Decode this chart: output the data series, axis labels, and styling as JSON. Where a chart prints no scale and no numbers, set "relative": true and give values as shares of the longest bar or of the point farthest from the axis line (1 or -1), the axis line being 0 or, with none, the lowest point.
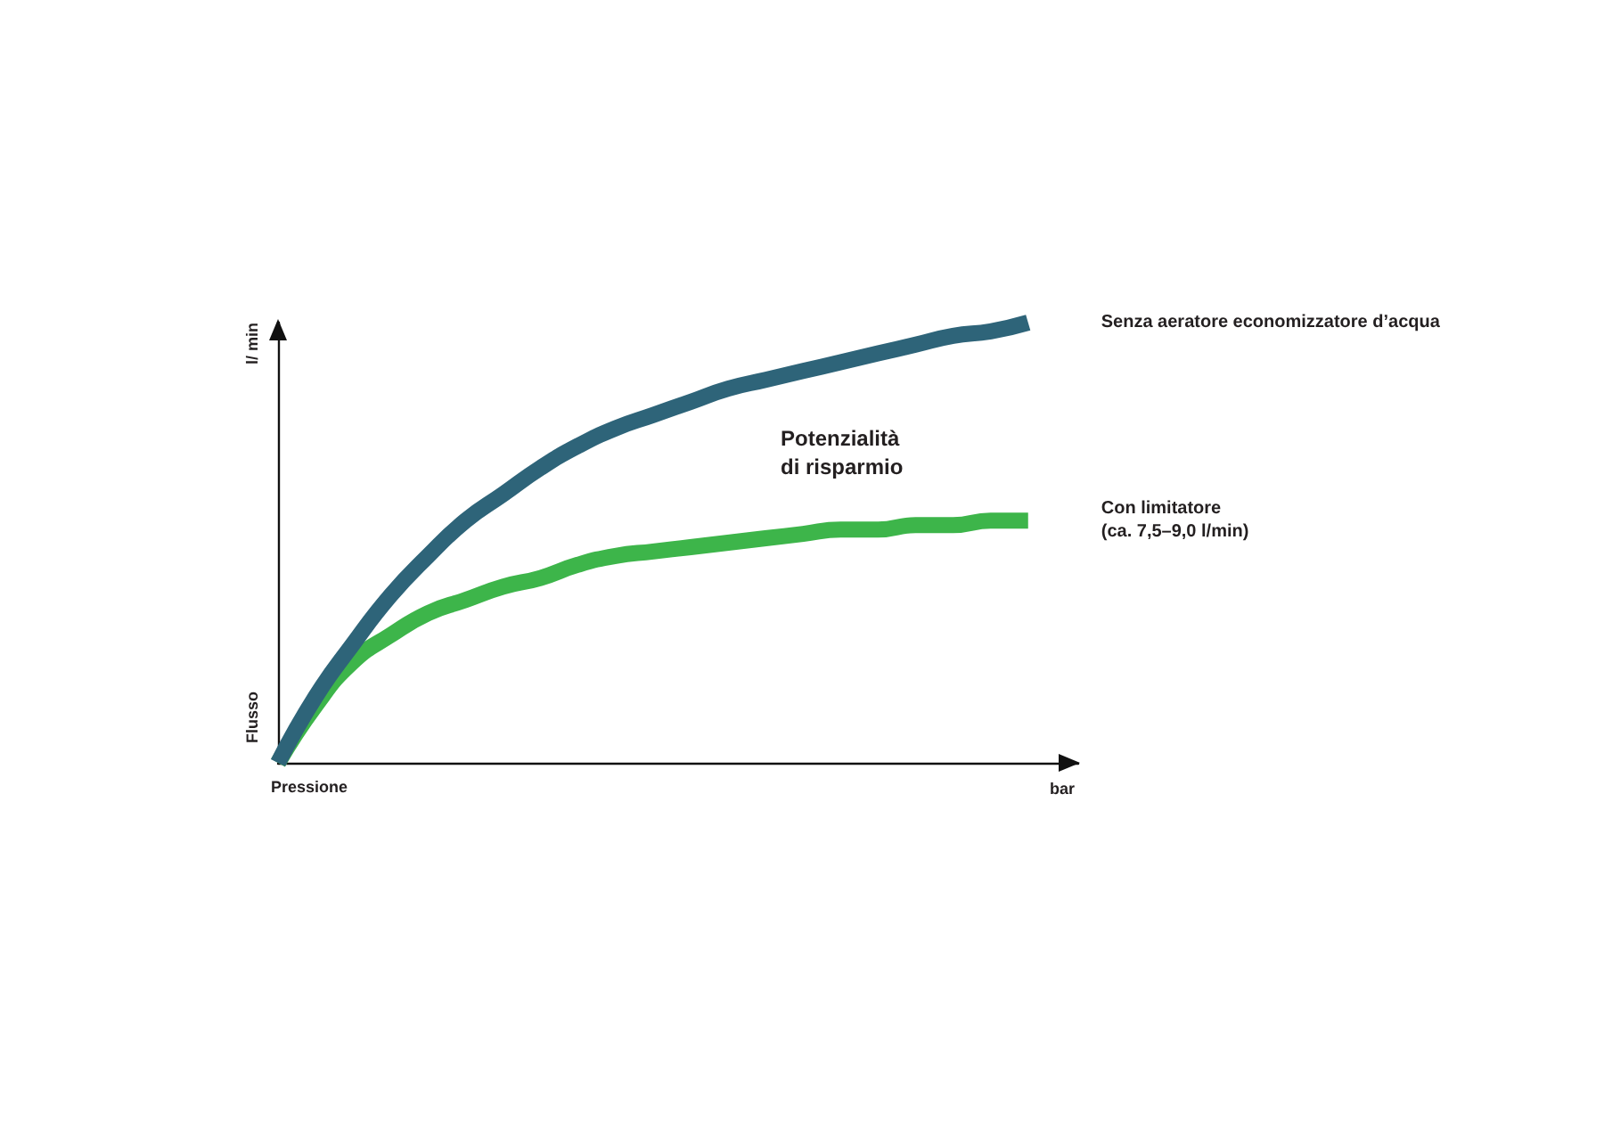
{
  "chart_data": {
    "type": "line",
    "relative": true,
    "xlabel": "Pressione",
    "ylabel": "Flusso",
    "annotations": [
      "l/ min",
      "bar",
      "Potenzialità\ndi risparmio"
    ],
    "categories": [
      null,
      null,
      null,
      null,
      null,
      null,
      null,
      null,
      null,
      null,
      null,
      null,
      null,
      null,
      null,
      null,
      null,
      null,
      null,
      null,
      null
    ],
    "series": [
      {
        "name": "Senza aeratore economizzatore d’acqua",
        "color": "#2e6479",
        "values": [
          0,
          0.15,
          0.27,
          0.38,
          0.47,
          0.55,
          0.61,
          0.67,
          0.72,
          0.76,
          0.79,
          0.82,
          0.85,
          0.87,
          0.89,
          0.91,
          0.93,
          0.95,
          0.97,
          0.98,
          1
        ]
      },
      {
        "name": "Con limitatore\n(ca. 7,5–9,0 l/min)",
        "color": "#3db54a",
        "values": [
          0,
          0.13,
          0.23,
          0.29,
          0.34,
          0.37,
          0.4,
          0.42,
          0.45,
          0.47,
          0.48,
          0.49,
          0.5,
          0.51,
          0.52,
          0.53,
          0.53,
          0.54,
          0.54,
          0.55,
          0.55
        ]
      }
    ],
    "marker": "none",
    "line_style": "solid"
  }
}
